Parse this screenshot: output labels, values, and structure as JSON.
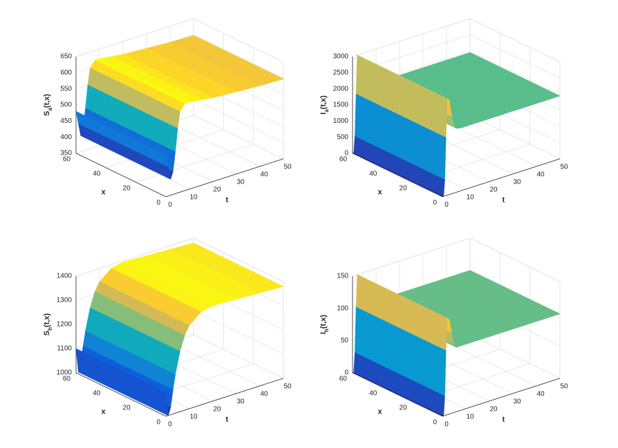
{
  "chart_data": [
    {
      "type": "surface",
      "zlabel": [
        "S",
        "a",
        "(t,x)"
      ],
      "tlabel": "t",
      "xlabel": "x",
      "t": [
        0,
        1,
        2,
        3,
        4,
        5,
        6,
        8,
        10,
        15,
        20,
        30,
        40,
        50
      ],
      "values": [
        480,
        440,
        400,
        420,
        480,
        550,
        600,
        620,
        620,
        615,
        610,
        605,
        600,
        598
      ],
      "tlim": [
        0,
        50
      ],
      "tticks": [
        0,
        10,
        20,
        30,
        40,
        50
      ],
      "xlim": [
        0,
        60
      ],
      "xticks": [
        0,
        20,
        40,
        60
      ],
      "zlim": [
        350,
        650
      ],
      "zticks": [
        350,
        400,
        450,
        500,
        550,
        600,
        650
      ],
      "grid": true
    },
    {
      "type": "surface",
      "zlabel": [
        "I",
        "a",
        "(t,x)"
      ],
      "tlabel": "t",
      "xlabel": "x",
      "t": [
        0,
        0.5,
        1,
        1.5,
        2,
        3,
        4,
        5,
        6,
        8,
        10,
        20,
        30,
        40,
        50
      ],
      "values": [
        0,
        0,
        500,
        1800,
        3000,
        2900,
        2400,
        2050,
        1980,
        1950,
        1950,
        1950,
        1950,
        1950,
        1950
      ],
      "tlim": [
        0,
        50
      ],
      "tticks": [
        0,
        10,
        20,
        30,
        40,
        50
      ],
      "xlim": [
        0,
        60
      ],
      "xticks": [
        0,
        20,
        40,
        60
      ],
      "zlim": [
        0,
        3000
      ],
      "zticks": [
        0,
        500,
        1000,
        1500,
        2000,
        2500,
        3000
      ],
      "grid": true
    },
    {
      "type": "surface",
      "zlabel": [
        "S",
        "h",
        "(t,x)"
      ],
      "tlabel": "t",
      "xlabel": "x",
      "t": [
        0,
        1,
        2,
        3,
        4,
        6,
        8,
        10,
        15,
        20,
        30,
        40,
        50
      ],
      "values": [
        1100,
        1000,
        1030,
        1100,
        1160,
        1250,
        1310,
        1345,
        1385,
        1395,
        1390,
        1385,
        1380
      ],
      "tlim": [
        0,
        50
      ],
      "tticks": [
        0,
        10,
        20,
        30,
        40,
        50
      ],
      "xlim": [
        0,
        60
      ],
      "xticks": [
        0,
        20,
        40,
        60
      ],
      "zlim": [
        1000,
        1400
      ],
      "zticks": [
        1000,
        1100,
        1200,
        1300,
        1400
      ],
      "grid": true
    },
    {
      "type": "surface",
      "zlabel": [
        "I",
        "h",
        "(t,x)"
      ],
      "tlabel": "t",
      "xlabel": "x",
      "t": [
        0,
        0.5,
        1,
        1.5,
        2,
        3,
        4,
        5,
        6,
        8,
        10,
        20,
        30,
        40,
        50
      ],
      "values": [
        0,
        0,
        30,
        100,
        150,
        145,
        125,
        105,
        100,
        100,
        100,
        100,
        100,
        100,
        100
      ],
      "tlim": [
        0,
        50
      ],
      "tticks": [
        0,
        10,
        20,
        30,
        40,
        50
      ],
      "xlim": [
        0,
        60
      ],
      "xticks": [
        0,
        20,
        40,
        60
      ],
      "zlim": [
        0,
        150
      ],
      "zticks": [
        0,
        50,
        100,
        150
      ],
      "grid": true
    }
  ]
}
